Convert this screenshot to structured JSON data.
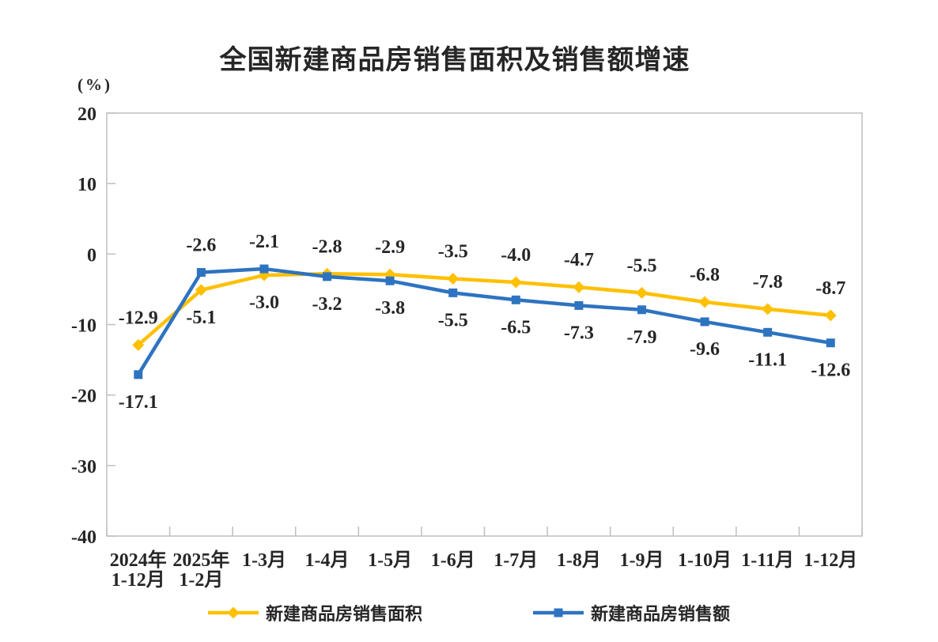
{
  "chart_data": {
    "type": "line",
    "title": "全国新建商品房销售面积及销售额增速",
    "unit_label": "(%)",
    "xlabel": "",
    "ylabel": "%",
    "ylim": [
      -40,
      20
    ],
    "y_ticks": [
      20,
      10,
      0,
      -10,
      -20,
      -30,
      -40
    ],
    "grid": false,
    "legend_position": "bottom",
    "categories": [
      [
        "2024年",
        "1-12月"
      ],
      [
        "2025年",
        "1-2月"
      ],
      [
        "1-3月"
      ],
      [
        "1-4月"
      ],
      [
        "1-5月"
      ],
      [
        "1-6月"
      ],
      [
        "1-7月"
      ],
      [
        "1-8月"
      ],
      [
        "1-9月"
      ],
      [
        "1-10月"
      ],
      [
        "1-11月"
      ],
      [
        "1-12月"
      ]
    ],
    "series": [
      {
        "name": "新建商品房销售面积",
        "marker": "diamond",
        "color": "#FFC000",
        "values": [
          -12.9,
          -5.1,
          -3.0,
          -2.8,
          -2.9,
          -3.5,
          -4.0,
          -4.7,
          -5.5,
          -6.8,
          -7.8,
          -8.7
        ]
      },
      {
        "name": "新建商品房销售额",
        "marker": "square",
        "color": "#2E73C0",
        "values": [
          -17.1,
          -2.6,
          -2.1,
          -3.2,
          -3.8,
          -5.5,
          -6.5,
          -7.3,
          -7.9,
          -9.6,
          -11.1,
          -12.6
        ]
      }
    ],
    "colors": {
      "axis": "#BFBFBF",
      "text": "#262626",
      "background": "#FFFFFF"
    }
  }
}
